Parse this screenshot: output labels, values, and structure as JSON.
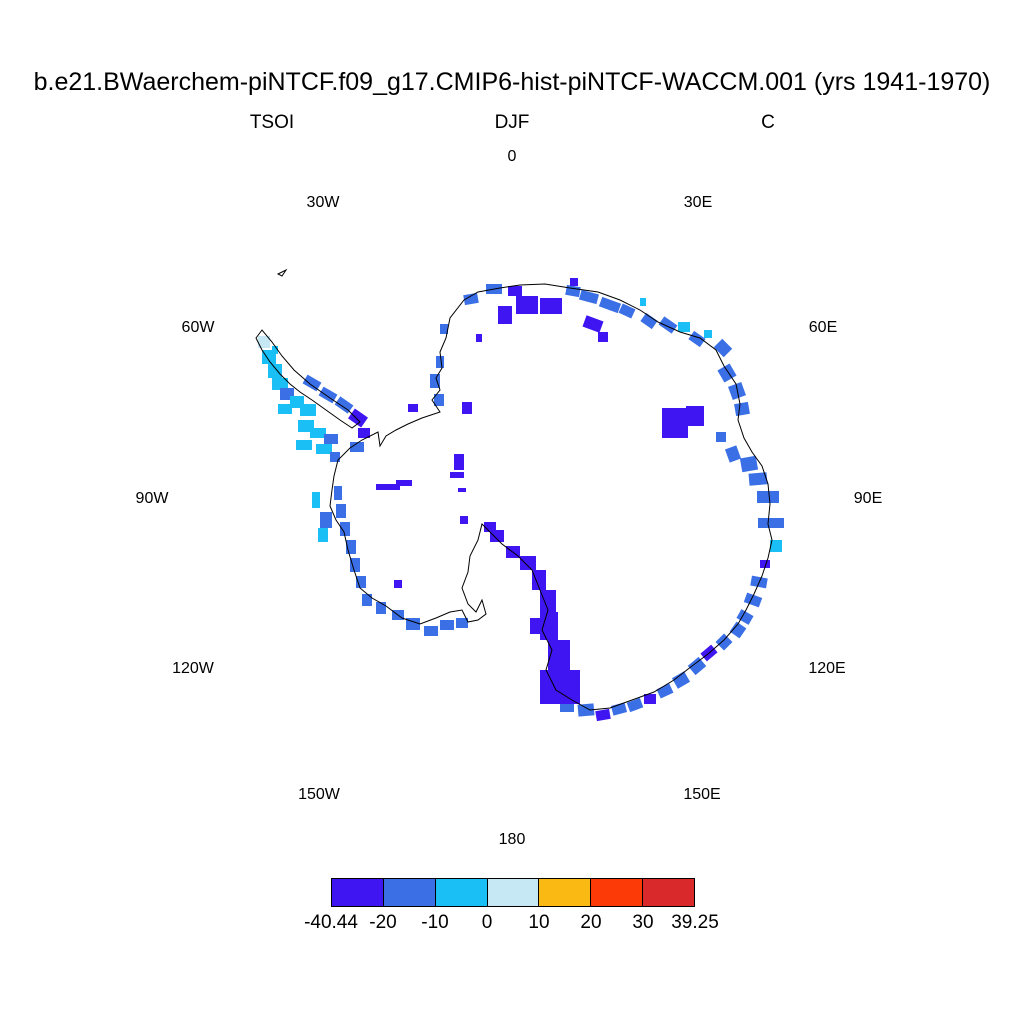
{
  "title": "b.e21.BWaerchem-piNTCF.f09_g17.CMIP6-hist-piNTCF-WACCM.001 (yrs 1941-1970)",
  "left_label": "TSOI",
  "center_label": "DJF",
  "right_label": "C",
  "lon_labels": {
    "l0": "0",
    "l30e": "30E",
    "l60e": "60E",
    "l90e": "90E",
    "l120e": "120E",
    "l150e": "150E",
    "l180": "180",
    "l150w": "150W",
    "l120w": "120W",
    "l90w": "90W",
    "l60w": "60W",
    "l30w": "30W"
  },
  "colorbar": {
    "colors": [
      "#3f16f2",
      "#3a6fe6",
      "#19bff5",
      "#c6e8f5",
      "#fbb914",
      "#fb3a07",
      "#d9292a"
    ],
    "labels": [
      "-40.44",
      "-20",
      "-10",
      "0",
      "10",
      "20",
      "30",
      "39.25"
    ]
  }
}
